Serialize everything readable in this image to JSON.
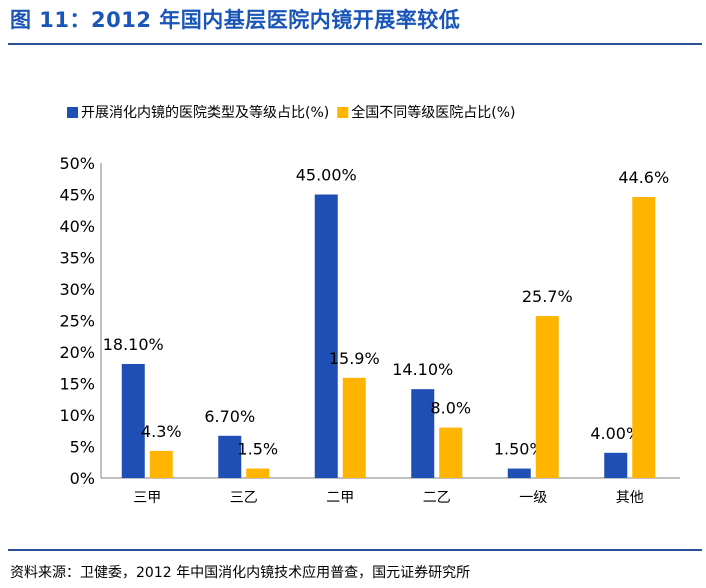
{
  "figure": {
    "title": "图 11：2012 年国内基层医院内镜开展率较低",
    "source": "资料来源：卫健委，2012 年中国消化内镜技术应用普查，国元证券研究所"
  },
  "chart_data": {
    "type": "bar",
    "categories": [
      "三甲",
      "三乙",
      "二甲",
      "二乙",
      "一级",
      "其他"
    ],
    "series": [
      {
        "name": "开展消化内镜的医院类型及等级占比(%)",
        "values": [
          18.1,
          6.7,
          45.0,
          14.1,
          1.5,
          4.0
        ],
        "labels": [
          "18.10%",
          "6.70%",
          "45.00%",
          "14.10%",
          "1.50%",
          "4.00%"
        ],
        "color": "#1f4fb4"
      },
      {
        "name": "全国不同等级医院占比(%)",
        "values": [
          4.3,
          1.5,
          15.9,
          8.0,
          25.7,
          44.6
        ],
        "labels": [
          "4.3%",
          "1.5%",
          "15.9%",
          "8.0%",
          "25.7%",
          "44.6%"
        ],
        "color": "#ffb400"
      }
    ],
    "ylim": [
      0,
      50
    ],
    "yticks": [
      "0%",
      "5%",
      "10%",
      "15%",
      "20%",
      "25%",
      "30%",
      "35%",
      "40%",
      "45%",
      "50%"
    ],
    "grid": false,
    "legend_position": "top"
  }
}
